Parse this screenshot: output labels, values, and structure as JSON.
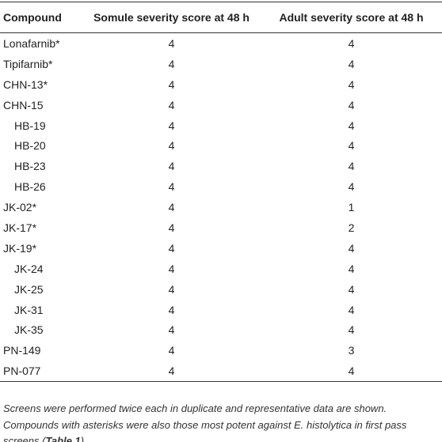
{
  "table": {
    "header": [
      "Compound",
      "Somule severity score at 48 h",
      "Adult severity score at 48 h"
    ],
    "rows": [
      [
        "Lonafarnib*",
        4,
        4
      ],
      [
        "Tipifarnib*",
        4,
        4
      ],
      [
        "CHN-13*",
        4,
        4
      ],
      [
        "CHN-15",
        4,
        4
      ],
      [
        "HB-19",
        4,
        4
      ],
      [
        "HB-20",
        4,
        4
      ],
      [
        "HB-23",
        4,
        4
      ],
      [
        "HB-26",
        4,
        4
      ],
      [
        "JK-02*",
        4,
        1
      ],
      [
        "JK-17*",
        4,
        2
      ],
      [
        "JK-19*",
        4,
        4
      ],
      [
        "JK-24",
        4,
        4
      ],
      [
        "JK-25",
        4,
        4
      ],
      [
        "JK-31",
        4,
        4
      ],
      [
        "JK-35",
        4,
        4
      ],
      [
        "PN-149",
        4,
        3
      ],
      [
        "PN-077",
        4,
        4
      ]
    ]
  },
  "footnote": {
    "text": "Screens were performed twice each in duplicate and representative data are shown. Compounds with asterisks were also those most potent against E. histolytica in first pass screens (",
    "reference": "Table 1",
    "text_after": ")."
  }
}
